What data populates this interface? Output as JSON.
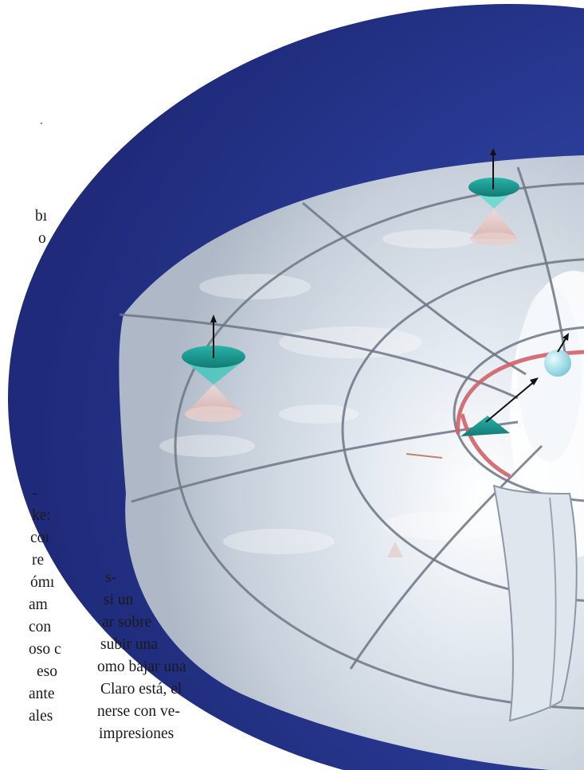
{
  "figure": {
    "subject": "spacetime-funnel-with-light-cones",
    "colors": {
      "background_blue": "#2a3b96",
      "surface_silver": "#cdd6e0",
      "grid_line": "#6e7684",
      "light_cone_teal": "#1f9e95",
      "past_cone_pink": "#e3c4c0",
      "horizon_ring": "#d06068",
      "observer_sphere": "#a8e6ef"
    }
  },
  "text": {
    "left_fragments": [
      "bı",
      "o",
      "-",
      "ke:",
      "coı",
      "re",
      "ómı",
      "am",
      "con",
      "oso c",
      "eso",
      "ante",
      "ales"
    ],
    "right_fragments": [
      "s-",
      "si un",
      "ar sobre",
      "subir una",
      "omo bajar una",
      "Claro está, el",
      "nerse con ve-",
      "impresiones"
    ]
  }
}
